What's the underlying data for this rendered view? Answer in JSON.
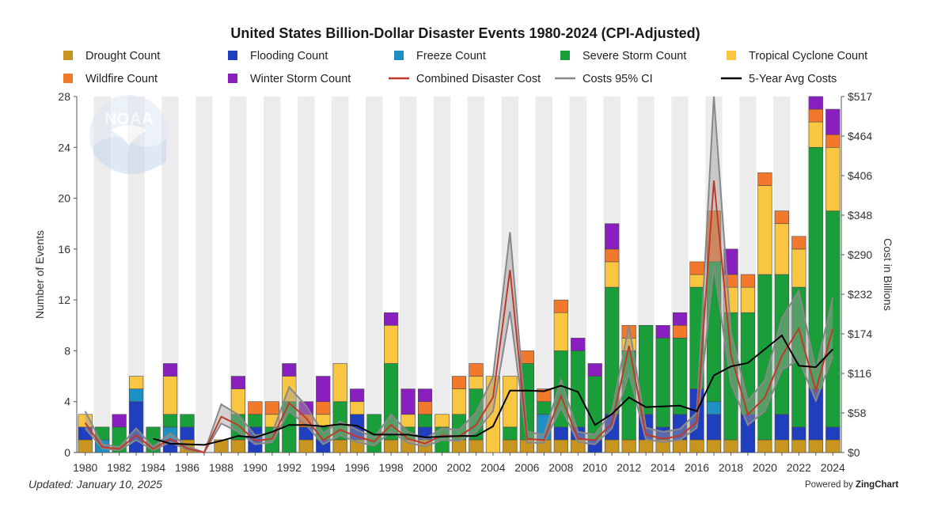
{
  "footer": {
    "updated": "Updated: January 10, 2025",
    "powered_prefix": "Powered by",
    "powered_brand": "ZingChart"
  },
  "watermark": {
    "text": "NOAA",
    "icon": "noaa-logo"
  },
  "chart_data": {
    "type": "bar",
    "title": "United States Billion-Dollar Disaster Events 1980-2024 (CPI-Adjusted)",
    "stacked": true,
    "ylabel": "Number of Events",
    "ylabel_right": "Cost in Billions",
    "ylim": [
      0,
      28
    ],
    "yticks": [
      0,
      4,
      8,
      12,
      16,
      20,
      24,
      28
    ],
    "ylim_right": [
      0,
      517
    ],
    "yticks_right": [
      "$0",
      "$58",
      "$116",
      "$174",
      "$232",
      "$290",
      "$348",
      "$406",
      "$464",
      "$517"
    ],
    "legend_position": "top",
    "grid": "alternating vertical bands",
    "categories": [
      1980,
      1981,
      1982,
      1983,
      1984,
      1985,
      1986,
      1987,
      1988,
      1989,
      1990,
      1991,
      1992,
      1993,
      1994,
      1995,
      1996,
      1997,
      1998,
      1999,
      2000,
      2001,
      2002,
      2003,
      2004,
      2005,
      2006,
      2007,
      2008,
      2009,
      2010,
      2011,
      2012,
      2013,
      2014,
      2015,
      2016,
      2017,
      2018,
      2019,
      2020,
      2021,
      2022,
      2023,
      2024
    ],
    "xticks": [
      "1980",
      "1982",
      "1984",
      "1986",
      "1988",
      "1990",
      "1992",
      "1994",
      "1996",
      "1998",
      "2000",
      "2002",
      "2004",
      "2006",
      "2008",
      "2010",
      "2012",
      "2014",
      "2016",
      "2018",
      "2020",
      "2022",
      "2024"
    ],
    "series": [
      {
        "name": "Drought Count",
        "color": "#c8961e",
        "values": [
          1,
          0,
          0,
          0,
          0,
          0,
          1,
          0,
          1,
          1,
          0,
          0,
          0,
          1,
          0,
          1,
          1,
          0,
          1,
          1,
          1,
          0,
          1,
          1,
          0,
          1,
          1,
          1,
          1,
          1,
          0,
          1,
          1,
          1,
          1,
          1,
          1,
          1,
          1,
          0,
          1,
          1,
          1,
          1,
          1
        ]
      },
      {
        "name": "Flooding Count",
        "color": "#1f3fbf",
        "values": [
          1,
          0,
          0,
          4,
          0,
          1,
          1,
          0,
          0,
          0,
          2,
          0,
          0,
          1,
          1,
          0,
          2,
          0,
          0,
          0,
          1,
          0,
          0,
          0,
          0,
          0,
          0,
          0,
          1,
          1,
          1,
          2,
          0,
          2,
          1,
          2,
          4,
          2,
          0,
          3,
          0,
          2,
          1,
          4,
          1
        ]
      },
      {
        "name": "Freeze Count",
        "color": "#1c8fc4",
        "values": [
          0,
          1,
          0,
          1,
          0,
          1,
          0,
          0,
          0,
          0,
          0,
          0,
          0,
          0,
          0,
          0,
          0,
          0,
          0,
          0,
          0,
          0,
          0,
          0,
          0,
          0,
          0,
          2,
          0,
          0,
          0,
          0,
          0,
          0,
          0,
          0,
          0,
          1,
          0,
          0,
          0,
          0,
          0,
          0,
          0
        ]
      },
      {
        "name": "Severe Storm Count",
        "color": "#1a9e3a",
        "values": [
          0,
          1,
          2,
          0,
          2,
          1,
          1,
          0,
          0,
          2,
          1,
          2,
          4,
          0,
          1,
          3,
          0,
          3,
          6,
          1,
          1,
          2,
          2,
          4,
          0,
          1,
          6,
          1,
          6,
          6,
          5,
          10,
          7,
          7,
          7,
          6,
          8,
          11,
          10,
          8,
          13,
          11,
          11,
          19,
          17
        ]
      },
      {
        "name": "Tropical Cyclone Count",
        "color": "#f9c642",
        "values": [
          1,
          0,
          0,
          1,
          0,
          3,
          0,
          0,
          0,
          2,
          0,
          1,
          2,
          0,
          1,
          3,
          1,
          0,
          3,
          1,
          0,
          1,
          2,
          1,
          6,
          4,
          0,
          0,
          3,
          0,
          0,
          2,
          1,
          0,
          0,
          0,
          1,
          0,
          2,
          2,
          7,
          4,
          3,
          2,
          5
        ]
      },
      {
        "name": "Wildfire Count",
        "color": "#f2782c",
        "values": [
          0,
          0,
          0,
          0,
          0,
          0,
          0,
          0,
          0,
          0,
          1,
          1,
          0,
          1,
          1,
          0,
          0,
          0,
          0,
          0,
          1,
          0,
          1,
          1,
          0,
          0,
          1,
          1,
          1,
          0,
          0,
          1,
          1,
          0,
          0,
          1,
          1,
          4,
          1,
          1,
          1,
          1,
          1,
          1,
          1
        ]
      },
      {
        "name": "Winter Storm Count",
        "color": "#8a1fbf",
        "values": [
          0,
          0,
          1,
          0,
          0,
          1,
          0,
          0,
          0,
          1,
          0,
          0,
          1,
          1,
          2,
          0,
          1,
          0,
          1,
          2,
          1,
          0,
          0,
          0,
          0,
          0,
          0,
          0,
          0,
          1,
          1,
          2,
          0,
          0,
          1,
          1,
          0,
          0,
          2,
          0,
          0,
          0,
          0,
          1,
          2
        ]
      },
      {
        "name": "Combined Disaster Cost",
        "color": "#c0392b",
        "type": "line",
        "axis": "right",
        "values": [
          43,
          8,
          5,
          25,
          5,
          20,
          6,
          0,
          52,
          40,
          17,
          20,
          72,
          50,
          18,
          33,
          23,
          16,
          40,
          20,
          13,
          25,
          23,
          40,
          80,
          265,
          20,
          18,
          82,
          20,
          18,
          42,
          155,
          26,
          20,
          24,
          44,
          395,
          142,
          55,
          80,
          140,
          180,
          90,
          180
        ]
      },
      {
        "name": "Costs 95% CI",
        "color": "#888888",
        "type": "band",
        "axis": "right",
        "lower": [
          35,
          6,
          3,
          18,
          3,
          15,
          4,
          0,
          42,
          30,
          12,
          15,
          60,
          40,
          12,
          25,
          15,
          10,
          30,
          14,
          9,
          18,
          17,
          30,
          60,
          205,
          14,
          14,
          65,
          15,
          12,
          35,
          115,
          19,
          15,
          18,
          36,
          270,
          100,
          40,
          60,
          120,
          135,
          75,
          140
        ],
        "upper": [
          60,
          12,
          8,
          35,
          8,
          28,
          9,
          0,
          70,
          55,
          25,
          28,
          95,
          68,
          28,
          45,
          33,
          22,
          55,
          30,
          20,
          35,
          33,
          58,
          110,
          320,
          30,
          26,
          105,
          30,
          26,
          60,
          185,
          36,
          30,
          34,
          58,
          517,
          175,
          75,
          105,
          195,
          235,
          120,
          225
        ]
      },
      {
        "name": "5-Year Avg Costs",
        "color": "#000000",
        "type": "line",
        "axis": "right",
        "values": [
          null,
          null,
          null,
          null,
          20,
          13,
          12,
          11,
          17,
          24,
          22,
          30,
          40,
          40,
          38,
          41,
          39,
          26,
          26,
          26,
          22,
          23,
          24,
          24,
          38,
          90,
          90,
          89,
          97,
          88,
          40,
          56,
          80,
          66,
          67,
          68,
          60,
          112,
          125,
          130,
          150,
          170,
          126,
          124,
          150
        ]
      }
    ]
  }
}
